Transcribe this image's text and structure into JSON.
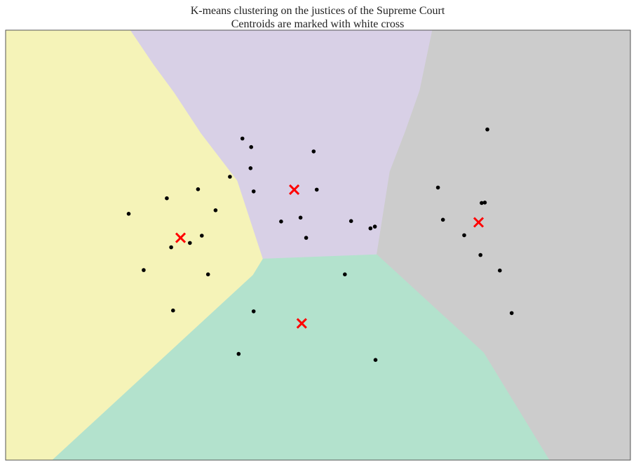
{
  "chart_data": {
    "type": "scatter",
    "title": "K-means clustering on the justices of the Supreme Court",
    "subtitle": "Centroids are marked with white cross",
    "xlabel": "",
    "ylabel": "",
    "xlim": [
      0,
      100
    ],
    "ylim": [
      0,
      100
    ],
    "grid": false,
    "legend": "none",
    "regions": [
      {
        "name": "",
        "color": "#f5f3b8",
        "polygon": [
          [
            0,
            100
          ],
          [
            20,
            100
          ],
          [
            23.7,
            92
          ],
          [
            27,
            85.5
          ],
          [
            31.3,
            76
          ],
          [
            37.1,
            65
          ],
          [
            41.2,
            46.8
          ],
          [
            39.6,
            43
          ],
          [
            7.5,
            0
          ],
          [
            0,
            0
          ]
        ]
      },
      {
        "name": "",
        "color": "#d8d0e6",
        "polygon": [
          [
            20,
            100
          ],
          [
            68.3,
            100
          ],
          [
            66.3,
            86
          ],
          [
            64,
            76.5
          ],
          [
            61.5,
            67.1
          ],
          [
            59.4,
            47.8
          ],
          [
            41.2,
            46.8
          ],
          [
            37.1,
            65
          ],
          [
            31.3,
            76
          ],
          [
            27,
            85.5
          ],
          [
            23.7,
            92
          ]
        ]
      },
      {
        "name": "",
        "color": "#cccccc",
        "polygon": [
          [
            68.3,
            100
          ],
          [
            100,
            100
          ],
          [
            100,
            0
          ],
          [
            87,
            0
          ],
          [
            76.5,
            25
          ],
          [
            59.4,
            47.8
          ],
          [
            61.5,
            67.1
          ],
          [
            64,
            76.5
          ],
          [
            66.3,
            86
          ]
        ]
      },
      {
        "name": "",
        "color": "#b3e2cd",
        "polygon": [
          [
            41.2,
            46.8
          ],
          [
            59.4,
            47.8
          ],
          [
            76.5,
            25
          ],
          [
            87,
            0
          ],
          [
            7.5,
            0
          ],
          [
            39.6,
            43
          ]
        ]
      }
    ],
    "series": [
      {
        "name": "",
        "color": "#000000",
        "marker": "dot",
        "x": [
          37.9,
          39.3,
          49.3,
          39.2,
          35.9,
          39.7,
          49.8,
          44.1,
          47.2,
          48.1,
          55.3,
          58.4,
          59.1,
          30.8,
          25.8,
          19.7,
          33.6,
          31.4,
          29.5,
          26.5,
          22.1,
          32.4,
          26.8,
          77.1,
          69.2,
          76.2,
          76.7,
          70.0,
          73.4,
          76.0,
          79.1,
          81.0,
          54.3,
          39.7,
          37.3,
          59.2
        ],
        "y": [
          74.8,
          72.8,
          71.8,
          67.9,
          65.9,
          62.5,
          62.9,
          55.5,
          56.4,
          51.7,
          55.6,
          53.9,
          54.3,
          63.0,
          60.9,
          57.3,
          58.1,
          52.2,
          50.5,
          49.5,
          44.2,
          43.2,
          34.8,
          76.9,
          63.4,
          59.8,
          59.9,
          55.9,
          52.3,
          47.7,
          44.1,
          34.2,
          43.2,
          34.6,
          24.7,
          23.3
        ]
      },
      {
        "name": "",
        "color": "#ff0000",
        "marker": "cross",
        "x": [
          46.2,
          28.0,
          75.7,
          47.4
        ],
        "y": [
          62.9,
          51.7,
          55.3,
          31.8
        ]
      }
    ]
  }
}
